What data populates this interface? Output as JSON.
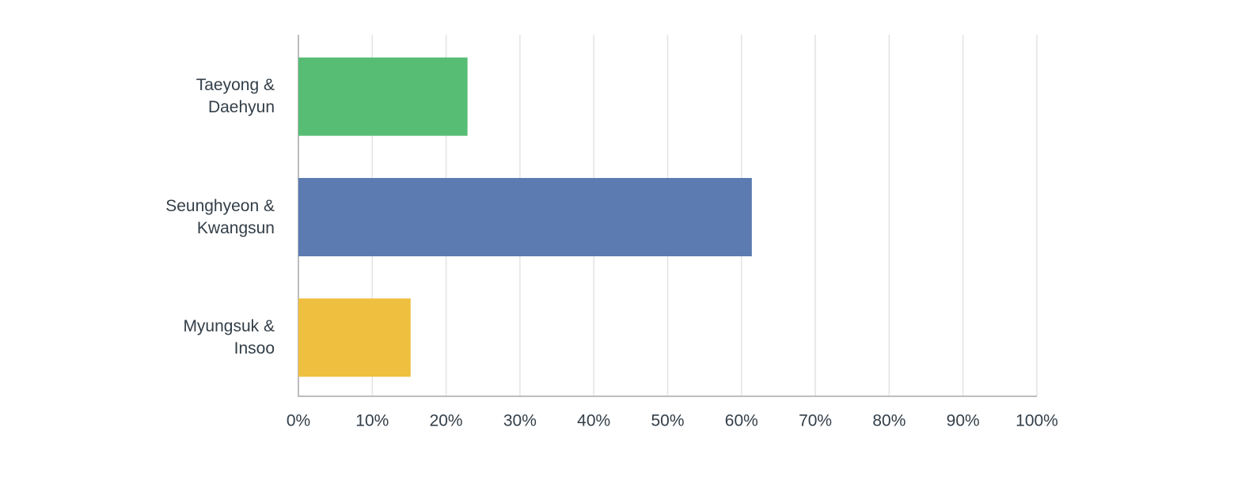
{
  "chart_data": {
    "type": "bar",
    "orientation": "horizontal",
    "categories": [
      "Taeyong & Daehyun",
      "Seunghyeon & Kwangsun",
      "Myungsuk & Insoo"
    ],
    "values": [
      22.9,
      61.4,
      15.2
    ],
    "colors": [
      "#57bd75",
      "#5b7bb1",
      "#efbf3f"
    ],
    "xlim": [
      0,
      100
    ],
    "xticks": [
      {
        "value": 0,
        "label": "0%"
      },
      {
        "value": 10,
        "label": "10%"
      },
      {
        "value": 20,
        "label": "20%"
      },
      {
        "value": 30,
        "label": "30%"
      },
      {
        "value": 40,
        "label": "40%"
      },
      {
        "value": 50,
        "label": "50%"
      },
      {
        "value": 60,
        "label": "60%"
      },
      {
        "value": 70,
        "label": "70%"
      },
      {
        "value": 80,
        "label": "80%"
      },
      {
        "value": 90,
        "label": "90%"
      },
      {
        "value": 100,
        "label": "100%"
      }
    ],
    "grid": true
  }
}
